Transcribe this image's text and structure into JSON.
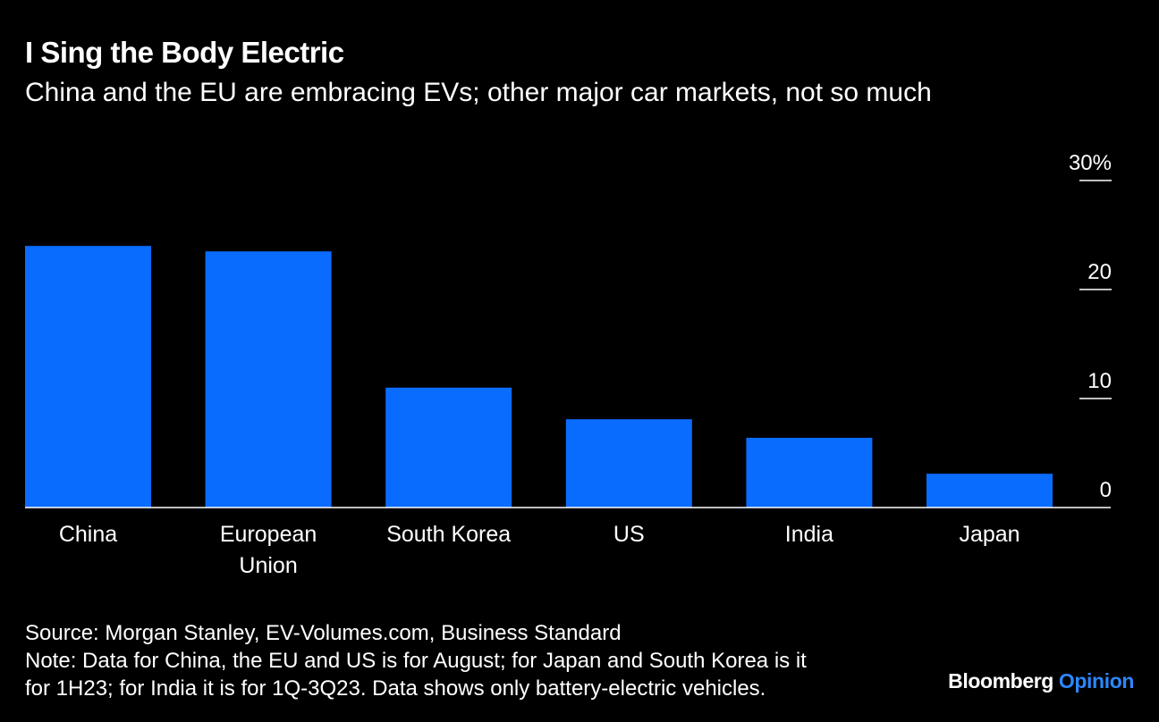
{
  "header": {
    "title": "I Sing the Body Electric",
    "subtitle": "China and the EU are embracing EVs; other major car markets, not so much"
  },
  "chart_data": {
    "type": "bar",
    "categories": [
      "China",
      "European Union",
      "South Korea",
      "US",
      "India",
      "Japan"
    ],
    "category_lines": [
      [
        "China"
      ],
      [
        "European",
        "Union"
      ],
      [
        "South Korea"
      ],
      [
        "US"
      ],
      [
        "India"
      ],
      [
        "Japan"
      ]
    ],
    "values": [
      24,
      23.5,
      11,
      8.1,
      6.4,
      3.1
    ],
    "ylim": [
      0,
      30
    ],
    "yticks": [
      0,
      10,
      20,
      30
    ],
    "ytick_labels": [
      "0",
      "10",
      "20",
      "30%"
    ],
    "y_axis_side": "right",
    "bar_color": "#0a6cff",
    "grid": false
  },
  "footer": {
    "source": "Source: Morgan Stanley, EV-Volumes.com, Business Standard",
    "note_line1": "Note: Data for China, the EU and US is for August; for Japan and South Korea is it",
    "note_line2": "for 1H23; for India it is for 1Q-3Q23. Data shows only battery-electric vehicles."
  },
  "brand": {
    "name": "Bloomberg",
    "section": "Opinion",
    "accent_color": "#2b87ff"
  }
}
